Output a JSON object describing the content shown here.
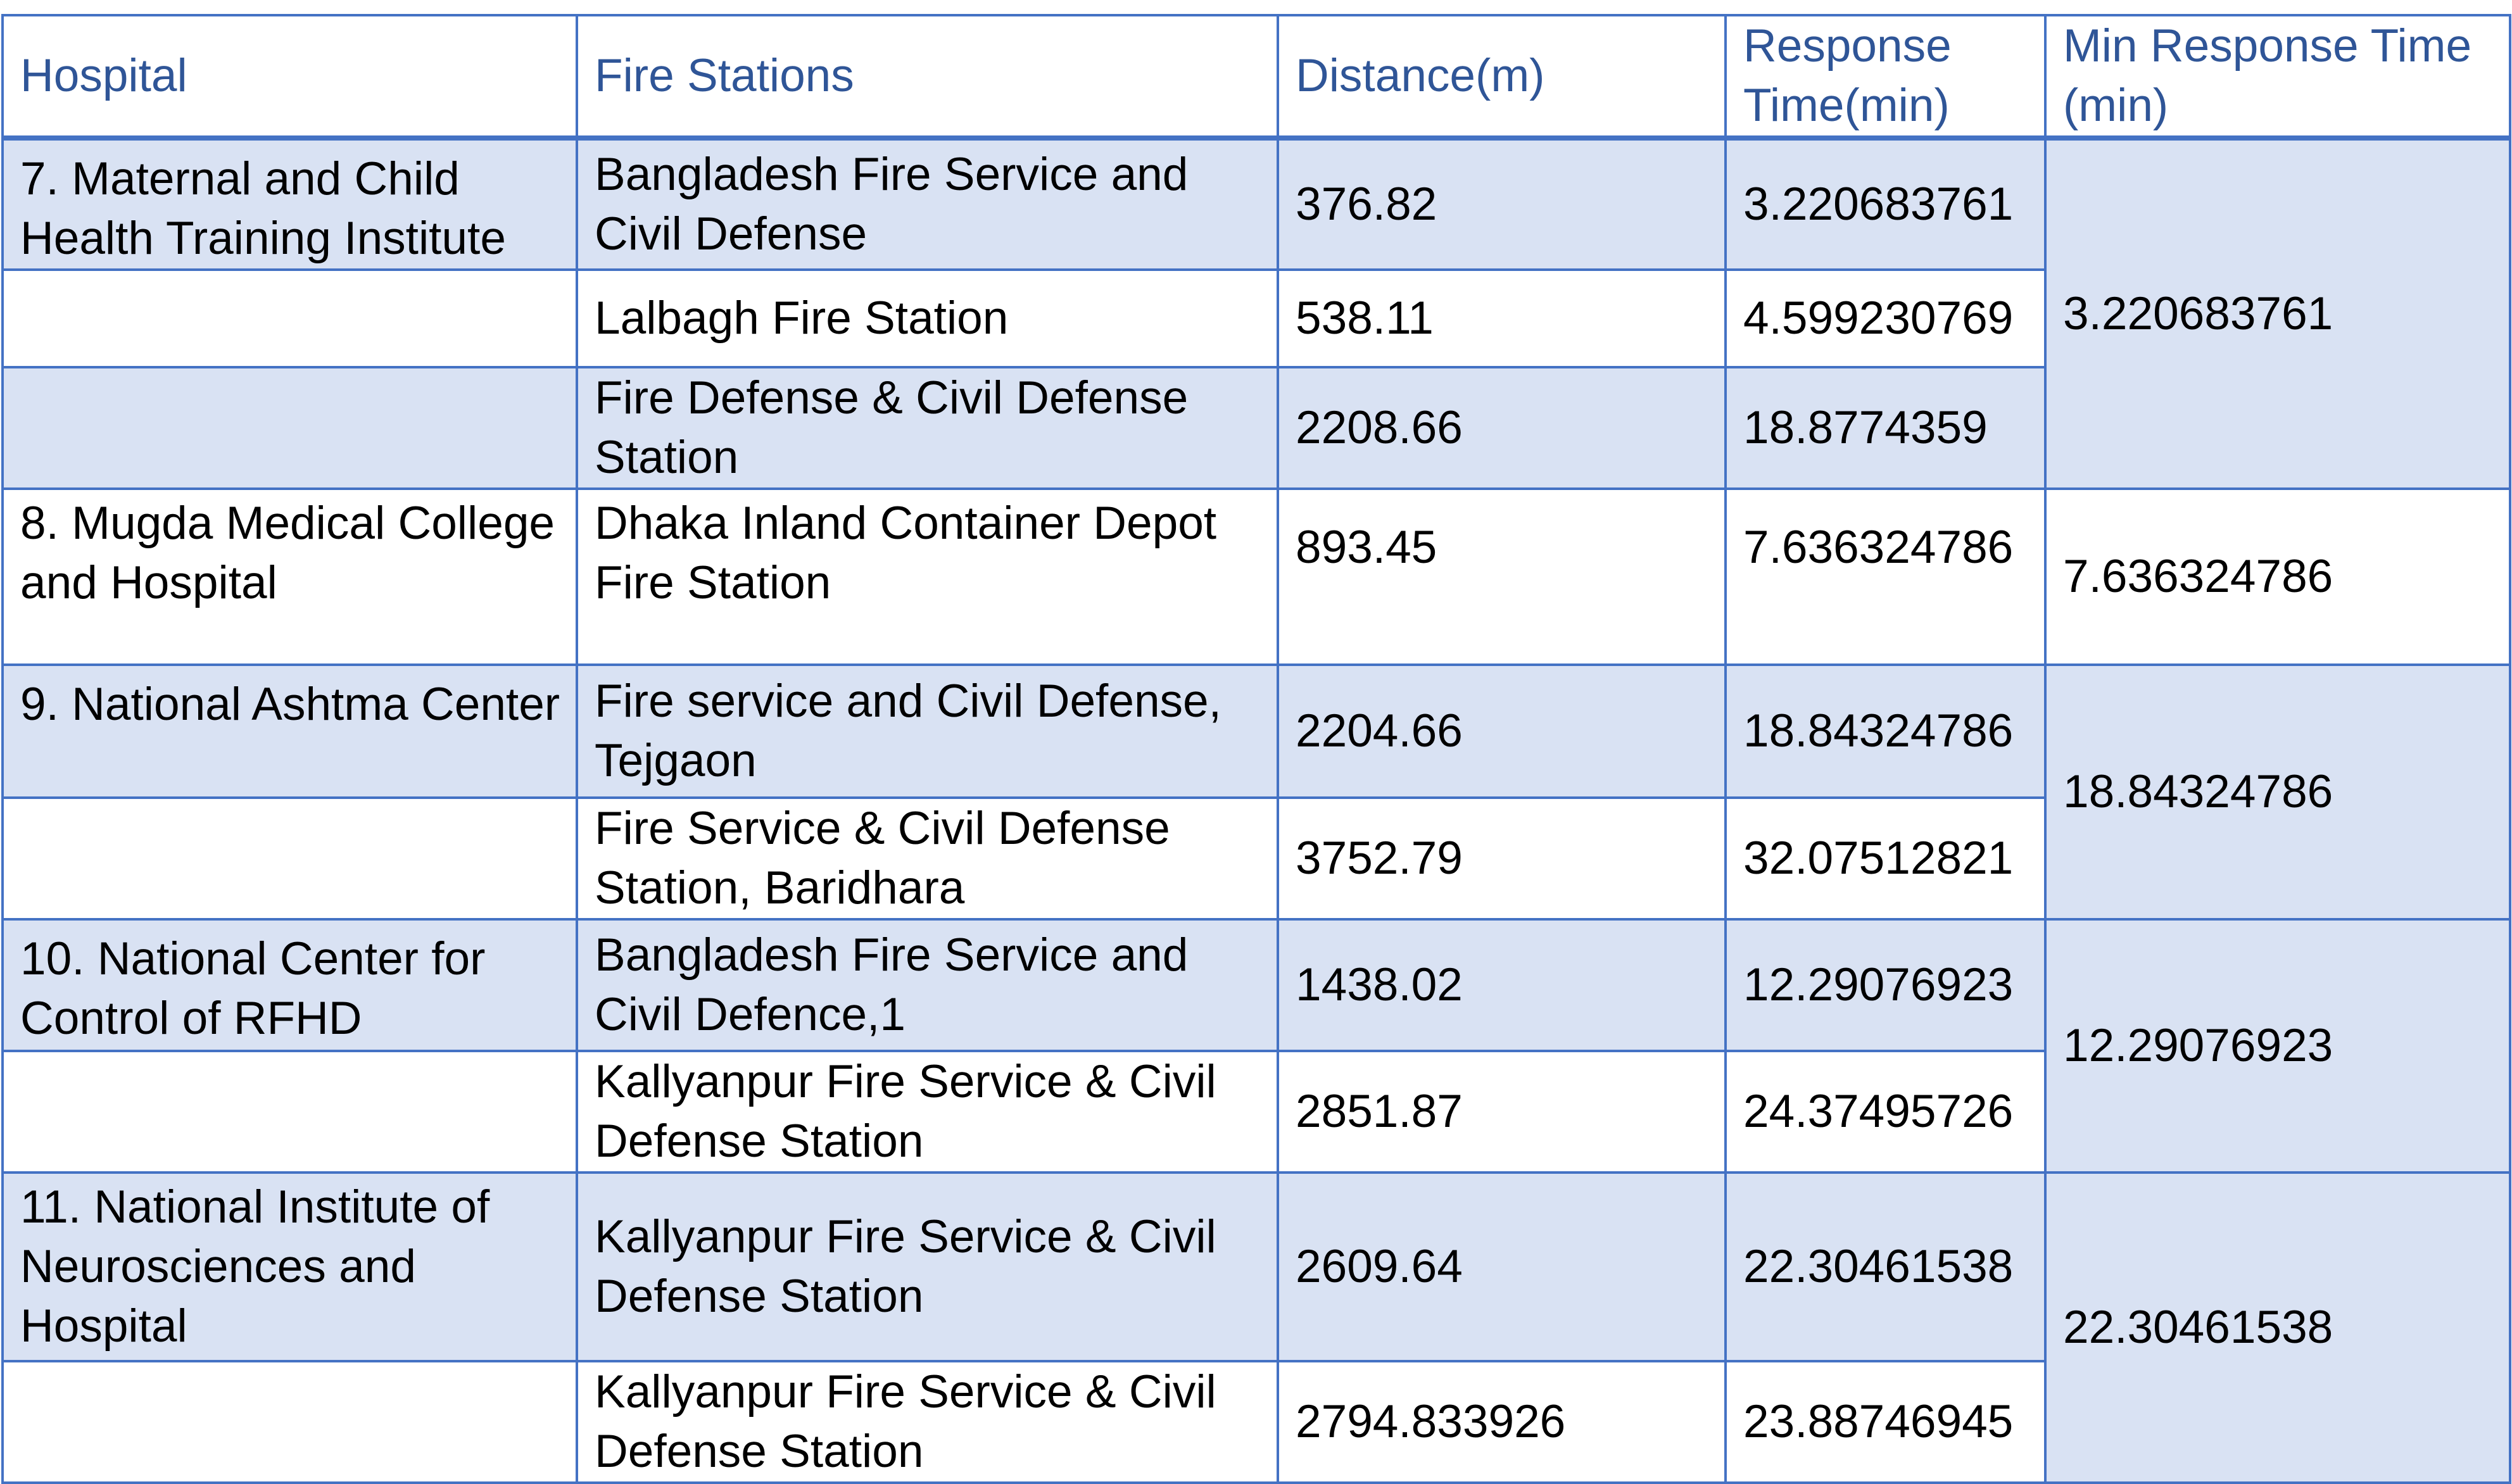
{
  "headers": {
    "hospital": "Hospital",
    "stations": "Fire Stations",
    "distance": "Distance(m)",
    "response": "Response Time(min)",
    "min_response": "Min Response Time (min)"
  },
  "groups": [
    {
      "hospital": "7. Maternal and Child Health Training Institute",
      "min_response": "3.220683761",
      "rows": [
        {
          "station": "Bangladesh Fire Service and Civil Defense",
          "distance": "376.82",
          "response": "3.220683761"
        },
        {
          "station": "Lalbagh Fire Station",
          "distance": "538.11",
          "response": "4.599230769"
        },
        {
          "station": "Fire Defense & Civil Defense Station",
          "distance": "2208.66",
          "response": "18.8774359"
        }
      ]
    },
    {
      "hospital": "8. Mugda Medical College and Hospital",
      "min_response": "7.636324786",
      "rows": [
        {
          "station": "Dhaka Inland Container Depot Fire Station",
          "distance": "893.45",
          "response": "7.636324786"
        }
      ]
    },
    {
      "hospital": "9. National Ashtma Center",
      "min_response": "18.84324786",
      "rows": [
        {
          "station": "Fire service and Civil Defense, Tejgaon",
          "distance": "2204.66",
          "response": "18.84324786"
        },
        {
          "station": "Fire Service & Civil Defense Station, Baridhara",
          "distance": "3752.79",
          "response": "32.07512821"
        }
      ]
    },
    {
      "hospital": "10. National Center for Control of RFHD",
      "min_response": "12.29076923",
      "rows": [
        {
          "station": "Bangladesh Fire Service and Civil Defence,1",
          "distance": "1438.02",
          "response": "12.29076923"
        },
        {
          "station": "Kallyanpur Fire Service & Civil Defense Station",
          "distance": "2851.87",
          "response": "24.37495726"
        }
      ]
    },
    {
      "hospital": "11. National Institute of Neurosciences and Hospital",
      "min_response": "22.30461538",
      "rows": [
        {
          "station": "Kallyanpur Fire Service & Civil Defense Station",
          "distance": "2609.64",
          "response": "22.30461538"
        },
        {
          "station": "Kallyanpur Fire Service & Civil Defense Station",
          "distance": "2794.833926",
          "response": "23.88746945"
        }
      ]
    }
  ],
  "colors": {
    "border": "#4472c4",
    "header_text": "#2f5597",
    "shaded_row": "#d9e2f3",
    "plain_row": "#ffffff"
  }
}
